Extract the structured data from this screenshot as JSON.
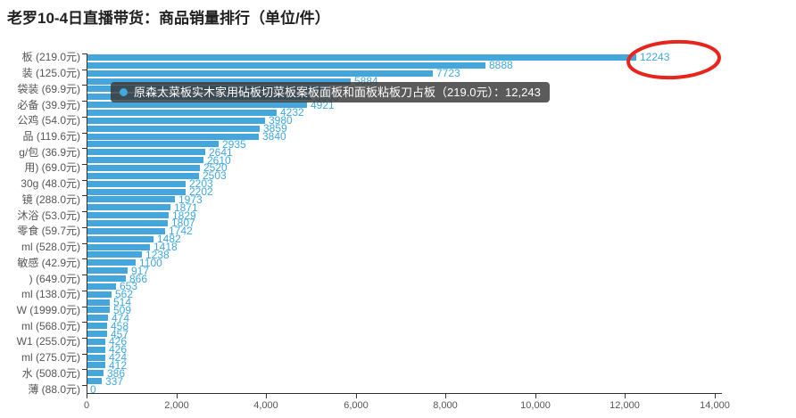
{
  "title": "老罗10-4日直播带货：商品销量排行（单位/件）",
  "colors": {
    "bar": "#45a6dc",
    "value_label": "#41a7dc",
    "axis_label": "#555555",
    "axis_line": "#333333",
    "title_text": "#1f1f1f",
    "tooltip_bg": "rgba(55,55,55,0.82)",
    "tooltip_text": "#ffffff",
    "highlight_ellipse": "#e8251c"
  },
  "chart_data": {
    "type": "bar",
    "orientation": "horizontal",
    "title": "老罗10-4日直播带货：商品销量排行（单位/件）",
    "xlabel": "",
    "ylabel": "",
    "xlim": [
      0,
      14000
    ],
    "x_ticks": [
      "0",
      "2,000",
      "4,000",
      "6,000",
      "8,000",
      "10,000",
      "12,000",
      "14,000"
    ],
    "grid": false,
    "legend": null,
    "note": "y-axis category labels are truncated at the left canvas edge; only every other bar is labeled",
    "rows": [
      {
        "label": "板 (219.0元)",
        "value": 12243,
        "value_label": "12243"
      },
      {
        "label": "",
        "value": 8888,
        "value_label": "8888"
      },
      {
        "label": "装 (125.0元)",
        "value": 7723,
        "value_label": "7723"
      },
      {
        "label": "",
        "value": 5884,
        "value_label": "5884"
      },
      {
        "label": "袋装 (69.9元)",
        "value": 5400,
        "value_label": "",
        "estimated": true,
        "occluded_by_tooltip": true
      },
      {
        "label": "",
        "value": 5008,
        "value_label": "5008"
      },
      {
        "label": "必备 (39.9元)",
        "value": 4921,
        "value_label": "4921"
      },
      {
        "label": "",
        "value": 4232,
        "value_label": "4232"
      },
      {
        "label": "公鸡 (54.0元)",
        "value": 3980,
        "value_label": "3980"
      },
      {
        "label": "",
        "value": 3859,
        "value_label": "3859"
      },
      {
        "label": "品 (119.6元)",
        "value": 3840,
        "value_label": "3840"
      },
      {
        "label": "",
        "value": 2935,
        "value_label": "2935"
      },
      {
        "label": "g/包 (36.9元)",
        "value": 2641,
        "value_label": "2641"
      },
      {
        "label": "",
        "value": 2610,
        "value_label": "2610"
      },
      {
        "label": "用) (69.0元)",
        "value": 2520,
        "value_label": "2520"
      },
      {
        "label": "",
        "value": 2503,
        "value_label": "2503"
      },
      {
        "label": "30g (48.0元)",
        "value": 2203,
        "value_label": "2203"
      },
      {
        "label": "",
        "value": 2202,
        "value_label": "2202"
      },
      {
        "label": "镜 (288.0元)",
        "value": 1973,
        "value_label": "1973"
      },
      {
        "label": "",
        "value": 1871,
        "value_label": "1871"
      },
      {
        "label": "沐浴 (53.0元)",
        "value": 1829,
        "value_label": "1829"
      },
      {
        "label": "",
        "value": 1807,
        "value_label": "1807"
      },
      {
        "label": "零食 (59.7元)",
        "value": 1742,
        "value_label": "1742"
      },
      {
        "label": "",
        "value": 1482,
        "value_label": "1482"
      },
      {
        "label": "ml (528.0元)",
        "value": 1418,
        "value_label": "1418"
      },
      {
        "label": "",
        "value": 1238,
        "value_label": "1238"
      },
      {
        "label": "敏感 (42.9元)",
        "value": 1100,
        "value_label": "1100"
      },
      {
        "label": "",
        "value": 917,
        "value_label": "917"
      },
      {
        "label": ") (649.0元)",
        "value": 866,
        "value_label": "866"
      },
      {
        "label": "",
        "value": 653,
        "value_label": "653"
      },
      {
        "label": "ml (138.0元)",
        "value": 562,
        "value_label": "562"
      },
      {
        "label": "",
        "value": 514,
        "value_label": "514"
      },
      {
        "label": "W (1999.0元)",
        "value": 509,
        "value_label": "509"
      },
      {
        "label": "",
        "value": 474,
        "value_label": "474"
      },
      {
        "label": "ml (568.0元)",
        "value": 458,
        "value_label": "458"
      },
      {
        "label": "",
        "value": 457,
        "value_label": "457"
      },
      {
        "label": "W1 (255.0元)",
        "value": 426,
        "value_label": "426"
      },
      {
        "label": "",
        "value": 426,
        "value_label": "426"
      },
      {
        "label": "ml (275.0元)",
        "value": 424,
        "value_label": "424"
      },
      {
        "label": "",
        "value": 412,
        "value_label": "412"
      },
      {
        "label": "水 (508.0元)",
        "value": 386,
        "value_label": "386"
      },
      {
        "label": "",
        "value": 337,
        "value_label": "337"
      },
      {
        "label": "薄 (88.0元)",
        "value": 0,
        "value_label": "0"
      }
    ]
  },
  "tooltip": {
    "marker": "circle-icon",
    "text": "原森太菜板实木家用砧板切菜板案板面板和面板粘板刀占板（219.0元）：12,243"
  },
  "annotation": {
    "shape": "hand-drawn red ellipse circling the top value",
    "target_value": "12243",
    "color": "#e8251c"
  }
}
